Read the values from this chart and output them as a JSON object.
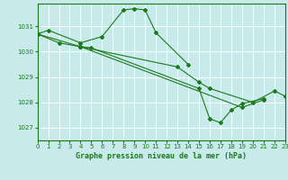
{
  "background_color": "#c8eaea",
  "grid_color": "#aadddd",
  "line_color": "#1a7a1a",
  "marker_color": "#1a7a1a",
  "title": "Graphe pression niveau de la mer (hPa)",
  "xlim": [
    0,
    23
  ],
  "ylim": [
    1026.5,
    1031.9
  ],
  "yticks": [
    1027,
    1028,
    1029,
    1030,
    1031
  ],
  "xticks": [
    0,
    1,
    2,
    3,
    4,
    5,
    6,
    7,
    8,
    9,
    10,
    11,
    12,
    13,
    14,
    15,
    16,
    17,
    18,
    19,
    20,
    21,
    22,
    23
  ],
  "actual_series": [
    {
      "x": [
        0,
        1,
        4,
        6,
        8,
        9,
        10,
        11,
        14
      ],
      "y": [
        1030.7,
        1030.85,
        1030.35,
        1030.6,
        1031.65,
        1031.7,
        1031.65,
        1030.75,
        1029.5
      ]
    },
    {
      "x": [
        0,
        2,
        4,
        5,
        15,
        16,
        17,
        18,
        19,
        21
      ],
      "y": [
        1030.7,
        1030.35,
        1030.2,
        1030.15,
        1028.55,
        1027.35,
        1027.2,
        1027.7,
        1027.95,
        1028.15
      ]
    },
    {
      "x": [
        0,
        4,
        13,
        15,
        16,
        20,
        22,
        23
      ],
      "y": [
        1030.7,
        1030.2,
        1029.4,
        1028.8,
        1028.55,
        1028.0,
        1028.45,
        1028.25
      ]
    },
    {
      "x": [
        4,
        19,
        21
      ],
      "y": [
        1030.2,
        1027.8,
        1028.1
      ]
    }
  ]
}
